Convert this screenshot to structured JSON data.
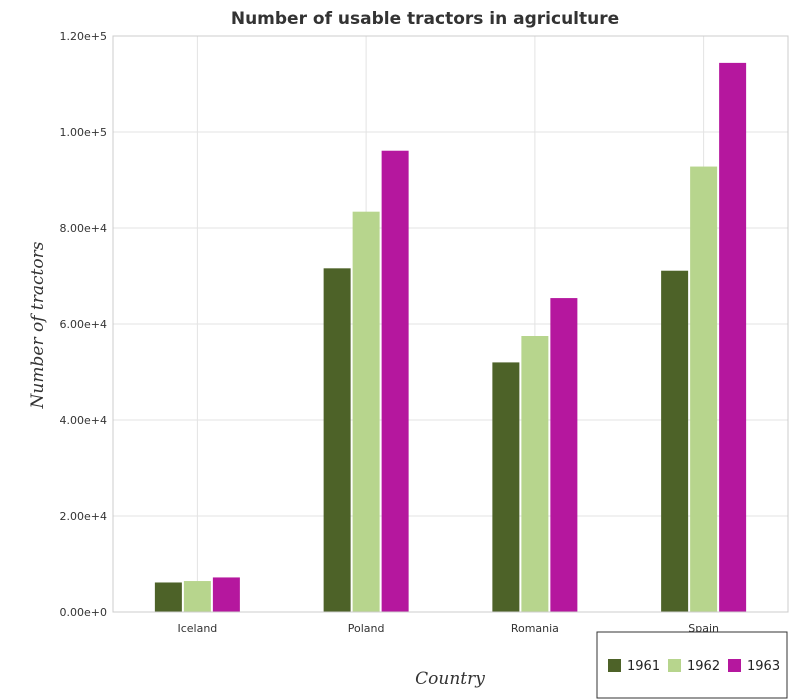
{
  "chart_data": {
    "type": "bar",
    "title": "Number of usable tractors in agriculture",
    "xlabel": "Country",
    "ylabel": "Number of tractors",
    "categories": [
      "Iceland",
      "Poland",
      "Romania",
      "Spain"
    ],
    "series": [
      {
        "name": "1961",
        "color": "#4d6228",
        "values": [
          6150,
          71600,
          52000,
          71100
        ]
      },
      {
        "name": "1962",
        "color": "#b7d58d",
        "values": [
          6450,
          83400,
          57500,
          92800
        ]
      },
      {
        "name": "1963",
        "color": "#b5179e",
        "values": [
          7200,
          96100,
          65400,
          114400
        ]
      }
    ],
    "ylim": [
      0,
      120000
    ],
    "yticks": [
      0,
      20000,
      40000,
      60000,
      80000,
      100000,
      120000
    ],
    "ytick_labels": [
      "0.00e+0",
      "2.00e+4",
      "4.00e+4",
      "6.00e+4",
      "8.00e+4",
      "1.00e+5",
      "1.20e+5"
    ],
    "grid": true,
    "legend_position": "bottom-right"
  }
}
